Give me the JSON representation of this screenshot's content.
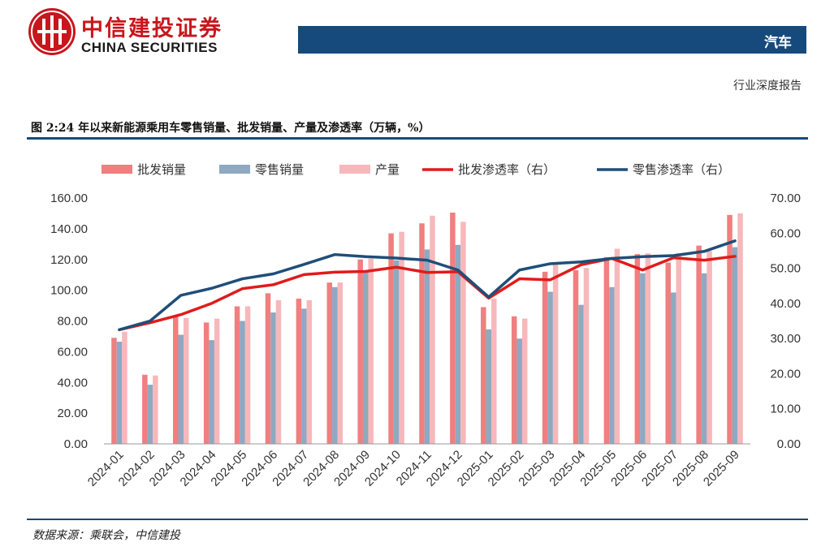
{
  "header": {
    "brand_cn": "中信建投证券",
    "brand_en": "CHINA SECURITIES",
    "sector": "汽车",
    "report_type": "行业深度报告",
    "brand_color": "#c8161d",
    "bar_color": "#174a7c"
  },
  "figure": {
    "title": "图 2:24 年以来新能源乘用车零售销量、批发销量、产量及渗透率（万辆，%）",
    "source": "数据来源：乘联会，中信建投"
  },
  "chart_data": {
    "type": "bar",
    "categories": [
      "2024-01",
      "2024-02",
      "2024-03",
      "2024-04",
      "2024-05",
      "2024-06",
      "2024-07",
      "2024-08",
      "2024-09",
      "2024-10",
      "2024-11",
      "2024-12",
      "2025-01",
      "2025-02",
      "2025-03",
      "2025-04",
      "2025-05",
      "2025-06",
      "2025-07",
      "2025-08",
      "2025-09"
    ],
    "series": [
      {
        "name": "批发销量",
        "kind": "bar",
        "axis": "left",
        "color": "#f07f7f",
        "values": [
          69,
          45,
          83,
          79,
          89.5,
          98,
          94.5,
          105,
          120,
          137,
          143.5,
          150.5,
          89,
          83,
          112,
          113,
          121.5,
          123.5,
          118,
          129,
          149
        ]
      },
      {
        "name": "零售销量",
        "kind": "bar",
        "axis": "left",
        "color": "#8ea9c1",
        "values": [
          66.5,
          38.5,
          71,
          67.5,
          80,
          85.5,
          88,
          102,
          112.5,
          119.5,
          126.5,
          129.5,
          74.5,
          68.5,
          99,
          90.5,
          102,
          111,
          98.5,
          111,
          128
        ]
      },
      {
        "name": "产量",
        "kind": "bar",
        "axis": "left",
        "color": "#f7b8bb",
        "values": [
          73,
          44.5,
          82,
          81.5,
          89.5,
          93.5,
          93.5,
          105,
          120.5,
          138,
          148.5,
          144.5,
          94.5,
          81.5,
          117,
          114.5,
          127,
          124,
          124,
          125.5,
          150
        ]
      },
      {
        "name": "批发渗透率（右）",
        "kind": "line",
        "axis": "right",
        "color": "#e01b1b",
        "values": [
          32.5,
          34.5,
          36.8,
          40,
          44.2,
          45.3,
          48.2,
          48.9,
          49.1,
          50.3,
          48.8,
          49,
          41.5,
          47,
          46.7,
          51,
          52.8,
          49.5,
          53,
          52.3,
          53.4
        ]
      },
      {
        "name": "零售渗透率（右）",
        "kind": "line",
        "axis": "right",
        "color": "#1f4e79",
        "values": [
          32.5,
          35,
          42.3,
          44.3,
          47,
          48.4,
          51.1,
          53.9,
          53.3,
          52.9,
          52.3,
          49.5,
          41.8,
          49.5,
          51.3,
          51.8,
          52.8,
          53.3,
          53.6,
          54.8,
          57.8
        ]
      }
    ],
    "yaxis_left": {
      "min": 0,
      "max": 160,
      "step": 20,
      "ticks": [
        "0.00",
        "20.00",
        "40.00",
        "60.00",
        "80.00",
        "100.00",
        "120.00",
        "140.00",
        "160.00"
      ]
    },
    "yaxis_right": {
      "min": 0,
      "max": 70,
      "step": 10,
      "ticks": [
        "0.00",
        "10.00",
        "20.00",
        "30.00",
        "40.00",
        "50.00",
        "60.00",
        "70.00"
      ]
    },
    "grid": false,
    "legend_position": "top"
  }
}
